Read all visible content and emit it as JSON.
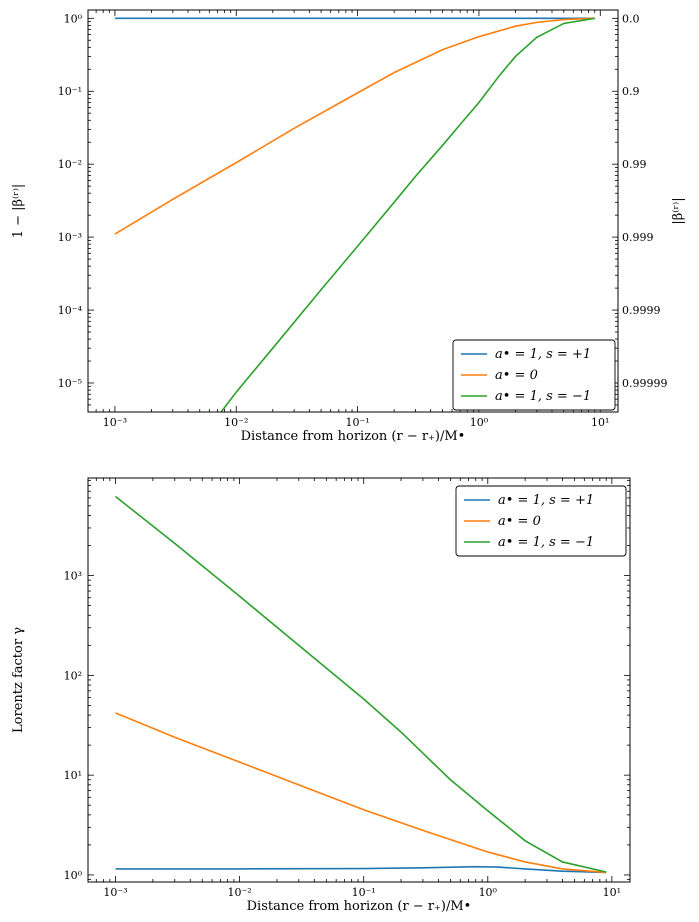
{
  "chart_data": [
    {
      "type": "line",
      "xlabel": "Distance from horizon (r − r₊)/M•",
      "ylabel": "1 − |β⁽ʳ⁾|",
      "ylabel_right": "|β⁽ʳ⁾|",
      "x_scale": "log",
      "y_scale": "log",
      "xlim": [
        0.0006,
        14
      ],
      "ylim": [
        4e-06,
        1.3
      ],
      "x_ticks": [
        {
          "value": 0.001,
          "label": "10⁻³"
        },
        {
          "value": 0.01,
          "label": "10⁻²"
        },
        {
          "value": 0.1,
          "label": "10⁻¹"
        },
        {
          "value": 1,
          "label": "10⁰"
        },
        {
          "value": 10,
          "label": "10¹"
        }
      ],
      "y_ticks": [
        {
          "value": 1,
          "label": "10⁰"
        },
        {
          "value": 0.1,
          "label": "10⁻¹"
        },
        {
          "value": 0.01,
          "label": "10⁻²"
        },
        {
          "value": 0.001,
          "label": "10⁻³"
        },
        {
          "value": 0.0001,
          "label": "10⁻⁴"
        },
        {
          "value": 1e-05,
          "label": "10⁻⁵"
        }
      ],
      "y_right_ticks": [
        {
          "value": 1,
          "label": "0.0"
        },
        {
          "value": 0.1,
          "label": "0.9"
        },
        {
          "value": 0.01,
          "label": "0.99"
        },
        {
          "value": 0.001,
          "label": "0.999"
        },
        {
          "value": 0.0001,
          "label": "0.9999"
        },
        {
          "value": 1e-05,
          "label": "0.99999"
        }
      ],
      "legend_position": "lower-right",
      "grid": false,
      "series": [
        {
          "name": "a• = 1, s = +1",
          "color": "#1f77b4",
          "x": [
            0.001,
            0.01,
            0.1,
            1,
            3,
            9
          ],
          "y": [
            1,
            1,
            1,
            1,
            1,
            1
          ]
        },
        {
          "name": "a• = 0",
          "color": "#ff7f0e",
          "x": [
            0.001,
            0.003,
            0.01,
            0.03,
            0.1,
            0.2,
            0.5,
            1,
            2,
            3,
            5,
            9
          ],
          "y": [
            0.0011,
            0.0033,
            0.0105,
            0.031,
            0.095,
            0.18,
            0.37,
            0.56,
            0.78,
            0.88,
            0.96,
            1
          ]
        },
        {
          "name": "a• = 1, s = −1",
          "color": "#2ca02c",
          "x": [
            0.0075,
            0.01,
            0.02,
            0.05,
            0.1,
            0.2,
            0.3,
            0.5,
            0.7,
            1,
            1.5,
            2,
            3,
            5,
            9
          ],
          "y": [
            4e-06,
            7.5e-06,
            3e-05,
            0.00019,
            0.00075,
            0.003,
            0.0068,
            0.018,
            0.035,
            0.07,
            0.17,
            0.3,
            0.55,
            0.85,
            1
          ]
        }
      ]
    },
    {
      "type": "line",
      "xlabel": "Distance from horizon (r − r₊)/M•",
      "ylabel": "Lorentz factor γ",
      "x_scale": "log",
      "y_scale": "log",
      "xlim": [
        0.0006,
        14
      ],
      "ylim": [
        0.85,
        9500
      ],
      "x_ticks": [
        {
          "value": 0.001,
          "label": "10⁻³"
        },
        {
          "value": 0.01,
          "label": "10⁻²"
        },
        {
          "value": 0.1,
          "label": "10⁻¹"
        },
        {
          "value": 1,
          "label": "10⁰"
        },
        {
          "value": 10,
          "label": "10¹"
        }
      ],
      "y_ticks": [
        {
          "value": 1,
          "label": "10⁰"
        },
        {
          "value": 10,
          "label": "10¹"
        },
        {
          "value": 100,
          "label": "10²"
        },
        {
          "value": 1000,
          "label": "10³"
        }
      ],
      "legend_position": "upper-right",
      "grid": false,
      "series": [
        {
          "name": "a• = 1, s = +1",
          "color": "#1f77b4",
          "x": [
            0.001,
            0.01,
            0.1,
            0.3,
            0.8,
            1.2,
            2,
            4,
            9
          ],
          "y": [
            1.15,
            1.15,
            1.16,
            1.18,
            1.21,
            1.2,
            1.15,
            1.09,
            1.06
          ]
        },
        {
          "name": "a• = 0",
          "color": "#ff7f0e",
          "x": [
            0.001,
            0.003,
            0.01,
            0.03,
            0.1,
            0.3,
            1,
            2,
            4,
            9
          ],
          "y": [
            42,
            24,
            13.5,
            8,
            4.5,
            2.8,
            1.7,
            1.35,
            1.15,
            1.06
          ]
        },
        {
          "name": "a• = 1, s = −1",
          "color": "#2ca02c",
          "x": [
            0.001,
            0.003,
            0.01,
            0.03,
            0.1,
            0.2,
            0.5,
            1,
            2,
            4,
            9
          ],
          "y": [
            6200,
            2100,
            620,
            200,
            58,
            27,
            9,
            4.4,
            2.2,
            1.35,
            1.07
          ]
        }
      ]
    }
  ]
}
